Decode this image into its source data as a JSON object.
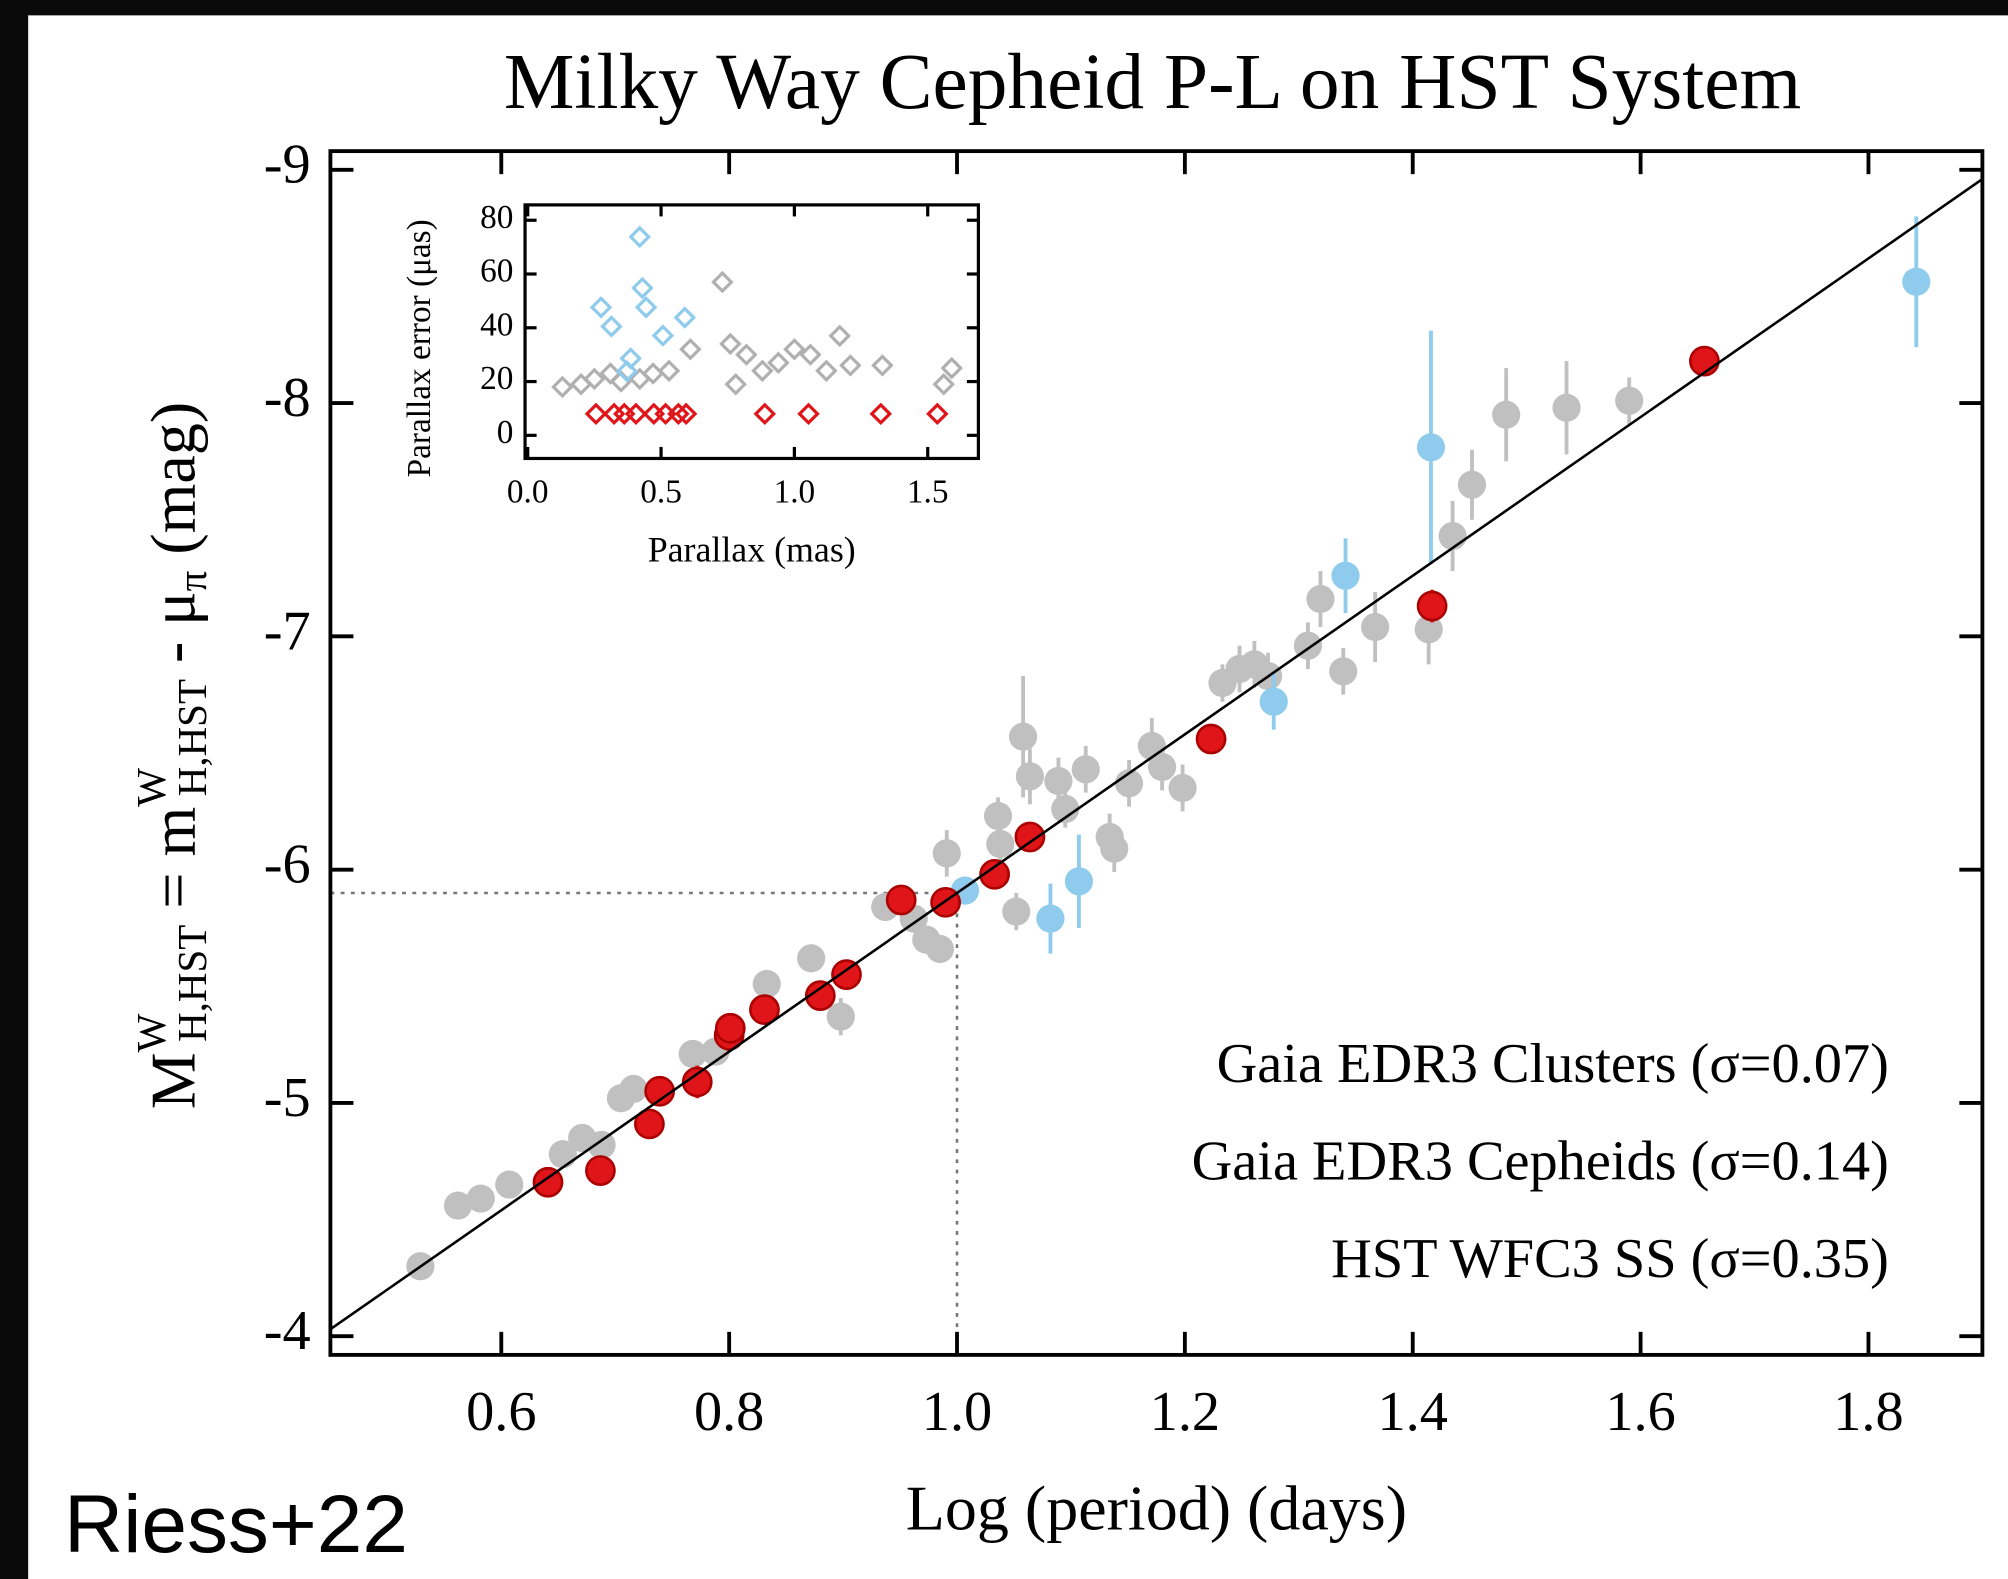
{
  "credit": "Riess+22",
  "chart_data": [
    {
      "type": "scatter",
      "title": "Milky Way Cepheid P-L on HST System",
      "xlabel": "Log (period) (days)",
      "ylabel": [
        "M",
        "W",
        "H,HST",
        " = m",
        "W",
        "H,HST",
        " - μ",
        "π",
        " (mag)"
      ],
      "xlim": [
        0.45,
        1.9
      ],
      "ylim": [
        -3.92,
        -9.08
      ],
      "xticks": [
        0.6,
        0.8,
        {
          "value": 1.0,
          "label": "1.0"
        },
        1.2,
        1.4,
        1.6,
        1.8
      ],
      "yticks": [
        -9,
        -8,
        -7,
        -6,
        -5,
        -4
      ],
      "legend": "lower right",
      "fit": {
        "x": [
          0.45,
          1.9
        ],
        "values": [
          -4.03,
          -8.96
        ],
        "color": "#000000"
      },
      "guides": {
        "x": 1.0,
        "y": -5.9
      },
      "series": [
        {
          "name": "Gaia EDR3 Cepheids (σ=0.14)",
          "color": "#c0c0c0",
          "x": [
            0.529,
            0.562,
            0.582,
            0.607,
            0.654,
            0.671,
            0.688,
            0.705,
            0.716,
            0.768,
            0.788,
            0.833,
            0.872,
            0.898,
            0.937,
            0.962,
            0.973,
            0.985,
            0.991,
            1.036,
            1.038,
            1.052,
            1.058,
            1.064,
            1.089,
            1.095,
            1.113,
            1.134,
            1.138,
            1.151,
            1.171,
            1.18,
            1.198,
            1.233,
            1.248,
            1.261,
            1.273,
            1.308,
            1.319,
            1.339,
            1.367,
            1.414,
            1.435,
            1.452,
            1.482,
            1.535,
            1.59
          ],
          "values": [
            -4.3,
            -4.56,
            -4.59,
            -4.65,
            -4.78,
            -4.85,
            -4.82,
            -5.02,
            -5.06,
            -5.21,
            -5.22,
            -5.51,
            -5.62,
            -5.37,
            -5.84,
            -5.79,
            -5.7,
            -5.66,
            -6.07,
            -6.23,
            -6.11,
            -5.82,
            -6.57,
            -6.4,
            -6.38,
            -6.26,
            -6.43,
            -6.14,
            -6.09,
            -6.37,
            -6.53,
            -6.44,
            -6.35,
            -6.8,
            -6.86,
            -6.88,
            -6.83,
            -6.96,
            -7.16,
            -6.85,
            -7.04,
            -7.03,
            -7.43,
            -7.65,
            -7.95,
            -7.98,
            -8.01
          ],
          "errors": [
            0.04,
            0.04,
            0.04,
            0.04,
            0.04,
            0.05,
            0.05,
            0.05,
            0.05,
            0.05,
            0.05,
            0.06,
            0.06,
            0.08,
            0.06,
            0.06,
            0.06,
            0.06,
            0.1,
            0.08,
            0.08,
            0.08,
            0.26,
            0.12,
            0.1,
            0.08,
            0.1,
            0.1,
            0.1,
            0.1,
            0.12,
            0.1,
            0.1,
            0.08,
            0.1,
            0.1,
            0.1,
            0.1,
            0.12,
            0.1,
            0.15,
            0.15,
            0.15,
            0.15,
            0.2,
            0.2,
            0.1
          ]
        },
        {
          "name": "HST WFC3 SS (σ=0.35)",
          "color": "#8ecbec",
          "x": [
            1.007,
            1.082,
            1.107,
            1.278,
            1.341,
            1.416,
            1.842
          ],
          "values": [
            -5.91,
            -5.79,
            -5.95,
            -6.72,
            -7.26,
            -7.81,
            -8.52
          ],
          "errors": [
            0.05,
            0.15,
            0.2,
            0.12,
            0.16,
            0.5,
            0.28
          ]
        },
        {
          "name": "Gaia EDR3 Clusters (σ=0.07)",
          "color": "#e0151a",
          "x": [
            0.641,
            0.687,
            0.73,
            0.739,
            0.772,
            0.8,
            0.801,
            0.831,
            0.88,
            0.903,
            0.951,
            0.99,
            1.033,
            1.064,
            1.223,
            1.417,
            1.656
          ],
          "values": [
            -4.66,
            -4.71,
            -4.91,
            -5.05,
            -5.09,
            -5.29,
            -5.32,
            -5.4,
            -5.46,
            -5.55,
            -5.87,
            -5.86,
            -5.98,
            -6.14,
            -6.56,
            -7.13,
            -8.18
          ],
          "errors": [
            0.06,
            0.06,
            0.06,
            0.05,
            0.07,
            0.07,
            0.05,
            0.05,
            0.06,
            0.05,
            0.06,
            0.05,
            0.06,
            0.05,
            0.06,
            0.07,
            0.06
          ]
        }
      ]
    },
    {
      "type": "scatter",
      "xlabel": "Parallax (mas)",
      "ylabel": "Parallax error (μas)",
      "xlim": [
        -0.01,
        1.69
      ],
      "ylim": [
        -8.6,
        85.7
      ],
      "xticks": [
        {
          "value": 0.0,
          "label": "0.0"
        },
        0.5,
        {
          "value": 1.0,
          "label": "1.0"
        },
        1.5
      ],
      "yticks": [
        0,
        20,
        40,
        60,
        80
      ],
      "series": [
        {
          "name": "Gaia EDR3 Cepheids",
          "color": "#b0b0b0",
          "x": [
            0.13,
            0.2,
            0.25,
            0.31,
            0.35,
            0.42,
            0.47,
            0.53,
            0.61,
            0.73,
            0.76,
            0.82,
            0.78,
            0.88,
            0.94,
            1.0,
            1.06,
            1.12,
            1.17,
            1.21,
            1.33,
            1.56,
            1.59
          ],
          "values": [
            18,
            19,
            21,
            23,
            20,
            21,
            23,
            24,
            32,
            57,
            34,
            30,
            19,
            24,
            27,
            32,
            30,
            24,
            37,
            26,
            26,
            19,
            25
          ]
        },
        {
          "name": "HST WFC3 SS",
          "color": "#8ecbec",
          "x": [
            0.275,
            0.314,
            0.42,
            0.43,
            0.444,
            0.507,
            0.589,
            0.386,
            0.372
          ],
          "values": [
            47.6,
            40.5,
            73.8,
            54.8,
            47.6,
            37.1,
            43.8,
            28.6,
            23.8
          ]
        },
        {
          "name": "Gaia EDR3 Clusters",
          "color": "#e0151a",
          "x": [
            0.256,
            0.324,
            0.362,
            0.406,
            0.473,
            0.517,
            0.565,
            0.594,
            0.889,
            1.053,
            1.324,
            1.536
          ],
          "values": [
            8,
            8,
            8,
            8,
            8,
            8,
            8,
            8,
            8,
            8,
            8,
            8
          ]
        }
      ]
    }
  ]
}
